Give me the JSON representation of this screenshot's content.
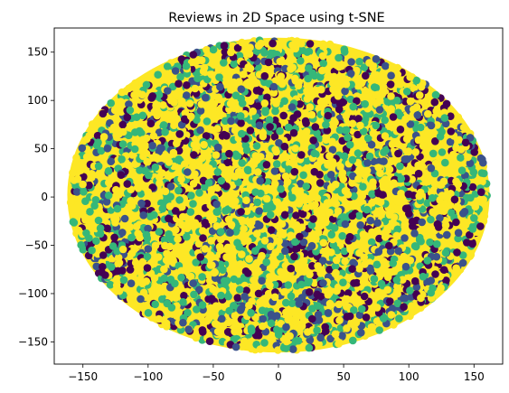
{
  "chart_data": {
    "type": "scatter",
    "title": "Reviews in 2D Space using t-SNE",
    "xlabel": "",
    "ylabel": "",
    "xlim": [
      -172,
      172
    ],
    "ylim": [
      -173,
      175
    ],
    "xticks": [
      -150,
      -100,
      -50,
      0,
      50,
      100,
      150
    ],
    "yticks": [
      -150,
      -100,
      -50,
      0,
      50,
      100,
      150
    ],
    "grid": false,
    "legend": "none",
    "point_region": {
      "shape": "ellipse",
      "center": [
        0,
        2
      ],
      "radius_x": 162,
      "radius_y": 163
    },
    "approx_point_count": 4200,
    "class_colors": [
      "#440154",
      "#3b528b",
      "#21918c",
      "#5ec962",
      "#fde725"
    ],
    "fill_color": "#fde725",
    "series": [
      {
        "color": "#440154",
        "share": 0.17
      },
      {
        "color": "#3b528b",
        "share": 0.12
      },
      {
        "color": "#35b779",
        "share": 0.25
      },
      {
        "color": "#fde725",
        "share": 0.46
      }
    ]
  }
}
